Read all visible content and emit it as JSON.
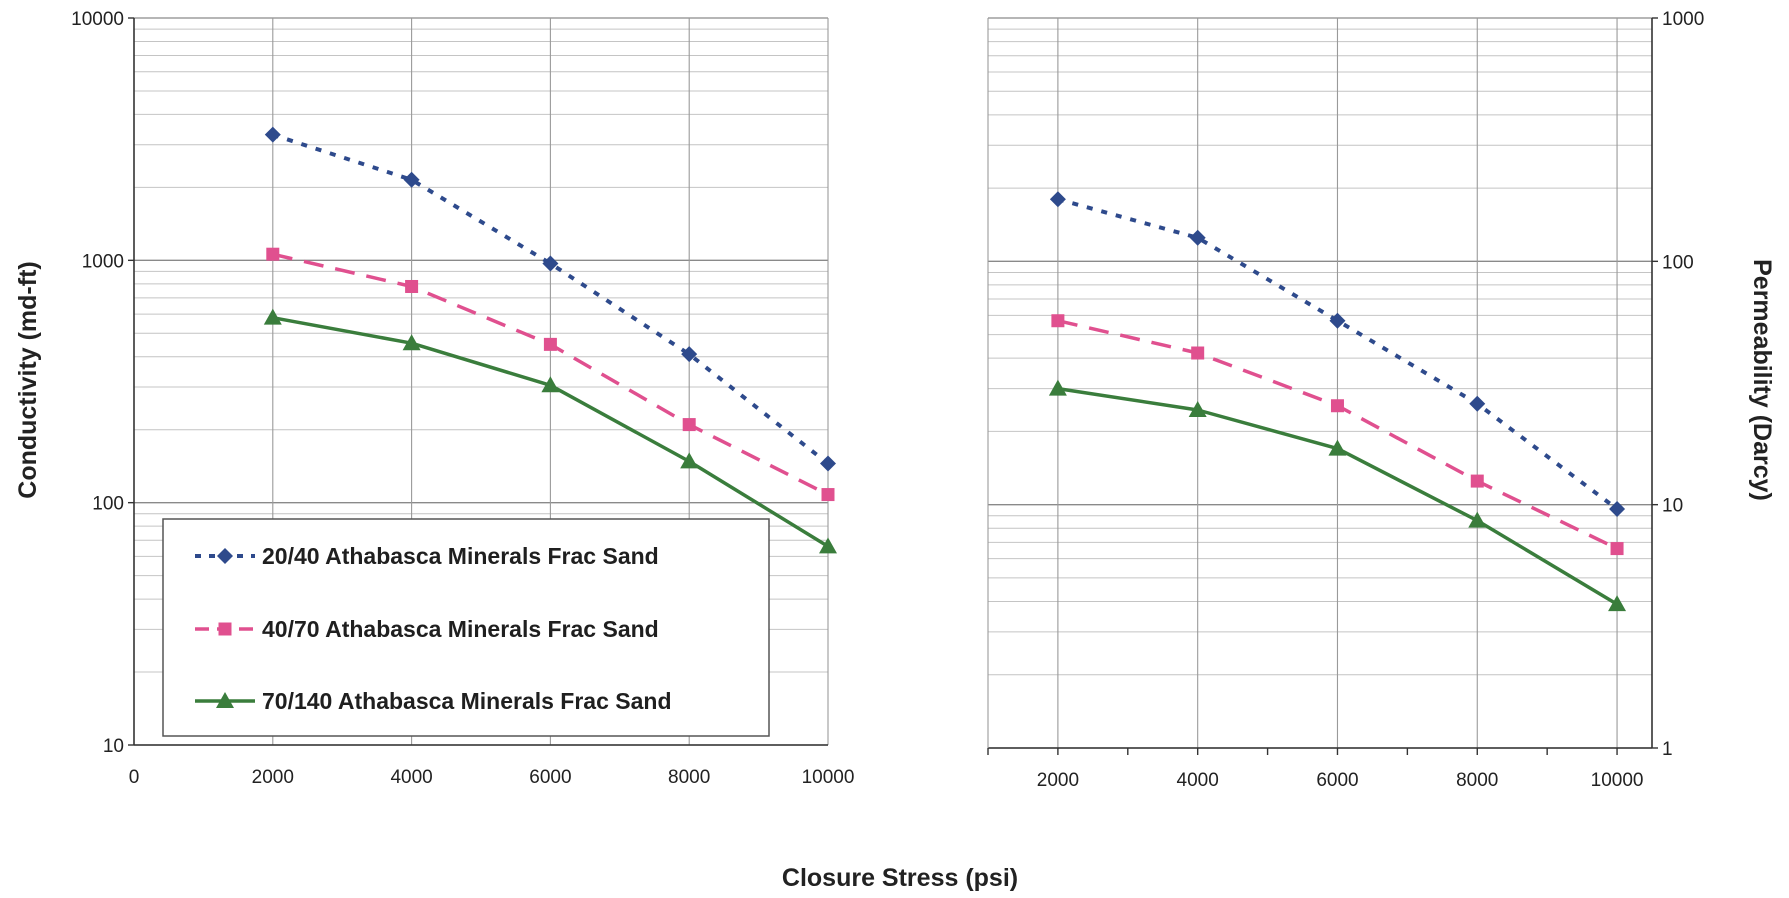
{
  "chart_data": [
    {
      "type": "line",
      "title": "",
      "xlabel": "Closure Stress (psi)",
      "ylabel": "Conductivity (md-ft)",
      "y_scale": "log",
      "ylim": [
        10,
        10000
      ],
      "xlim": [
        0,
        10000
      ],
      "x_ticks": [
        "0",
        "2000",
        "4000",
        "6000",
        "8000",
        "10000"
      ],
      "y_ticks": [
        "10000",
        "1000",
        "100",
        "10"
      ],
      "grid": true,
      "x": [
        2000,
        4000,
        6000,
        8000,
        10000
      ],
      "series": [
        {
          "name": "20/40 Athabasca Minerals Frac Sand",
          "values": [
            3300,
            2150,
            970,
            410,
            145
          ],
          "color": "#2e4a8c",
          "marker": "diamond",
          "dash": "dotted"
        },
        {
          "name": "40/70 Athabasca Minerals Frac Sand",
          "values": [
            1060,
            780,
            450,
            210,
            108
          ],
          "color": "#e0508f",
          "marker": "square",
          "dash": "dashed"
        },
        {
          "name": "70/140 Athabasca Minerals Frac Sand",
          "values": [
            580,
            455,
            305,
            148,
            66
          ],
          "color": "#3a7d3c",
          "marker": "triangle",
          "dash": "solid"
        }
      ],
      "legend": {
        "position": "bottom-right",
        "entries": [
          "20/40 Athabasca Minerals Frac Sand",
          "40/70 Athabasca Minerals Frac Sand",
          "70/140 Athabasca Minerals Frac Sand"
        ]
      }
    },
    {
      "type": "line",
      "title": "",
      "xlabel": "Closure Stress (psi)",
      "ylabel": "Permeability (Darcy)",
      "y_scale": "log",
      "ylim": [
        1,
        1000
      ],
      "xlim": [
        1000,
        10500
      ],
      "x_ticks": [
        "2000",
        "4000",
        "6000",
        "8000",
        "10000"
      ],
      "y_ticks": [
        "1000",
        "100",
        "10",
        "1"
      ],
      "grid": true,
      "x": [
        2000,
        4000,
        6000,
        8000,
        10000
      ],
      "series": [
        {
          "name": "20/40 Athabasca Minerals Frac Sand",
          "values": [
            180,
            125,
            57,
            26,
            9.6
          ],
          "color": "#2e4a8c",
          "marker": "diamond",
          "dash": "dotted"
        },
        {
          "name": "40/70 Athabasca Minerals Frac Sand",
          "values": [
            57,
            42,
            25.5,
            12.5,
            6.6
          ],
          "color": "#e0508f",
          "marker": "square",
          "dash": "dashed"
        },
        {
          "name": "70/140 Athabasca Minerals Frac Sand",
          "values": [
            30,
            24.5,
            17,
            8.6,
            3.9
          ],
          "color": "#3a7d3c",
          "marker": "triangle",
          "dash": "solid"
        }
      ]
    }
  ]
}
